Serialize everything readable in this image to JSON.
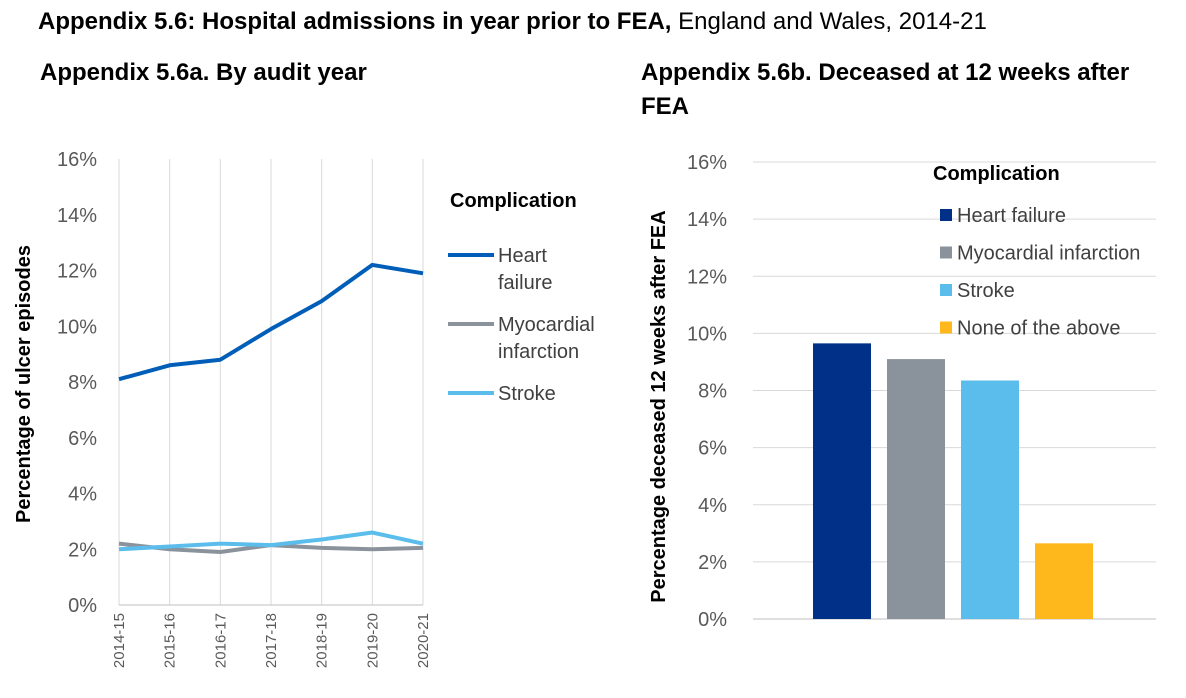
{
  "page": {
    "title_bold": "Appendix 5.6: Hospital admissions in year prior to FEA,",
    "title_rest": " England and Wales, 2014-21"
  },
  "chart_data": [
    {
      "type": "line",
      "title": "Appendix 5.6a. By audit year",
      "xlabel": "",
      "ylabel": "Percentage of ulcer episodes",
      "categories": [
        "2014-15",
        "2015-16",
        "2016-17",
        "2017-18",
        "2018-19",
        "2019-20",
        "2020-21"
      ],
      "yticks": [
        "0%",
        "2%",
        "4%",
        "6%",
        "8%",
        "10%",
        "12%",
        "14%",
        "16%"
      ],
      "ylim": [
        0,
        16
      ],
      "grid": "vertical",
      "legend_title": "Complication",
      "legend_position": "right",
      "series": [
        {
          "name_lines": [
            "Heart",
            "failure"
          ],
          "color": "#005EB8",
          "values": [
            8.1,
            8.6,
            8.8,
            9.9,
            10.9,
            12.2,
            11.9
          ]
        },
        {
          "name_lines": [
            "Myocardial",
            "infarction"
          ],
          "color": "#8A939C",
          "values": [
            2.2,
            2.0,
            1.9,
            2.15,
            2.05,
            2.0,
            2.05
          ]
        },
        {
          "name_lines": [
            "Stroke"
          ],
          "color": "#5BBDEB",
          "values": [
            2.0,
            2.1,
            2.2,
            2.15,
            2.35,
            2.6,
            2.2
          ]
        }
      ]
    },
    {
      "type": "bar",
      "title": "Appendix 5.6b. Deceased at 12 weeks after FEA",
      "xlabel": "",
      "ylabel": "Percentage deceased 12 weeks after FEA",
      "yticks": [
        "0%",
        "2%",
        "4%",
        "6%",
        "8%",
        "10%",
        "12%",
        "14%",
        "16%"
      ],
      "ylim": [
        0,
        16
      ],
      "grid": "horizontal",
      "legend_title": "Complication",
      "legend_position": "top-right",
      "categories": [
        "Heart failure",
        "Myocardial infarction",
        "Stroke",
        "None of the above"
      ],
      "values": [
        9.65,
        9.1,
        8.35,
        2.65
      ],
      "colors": [
        "#003087",
        "#8A939C",
        "#5BBDEB",
        "#FFB81C"
      ]
    }
  ]
}
